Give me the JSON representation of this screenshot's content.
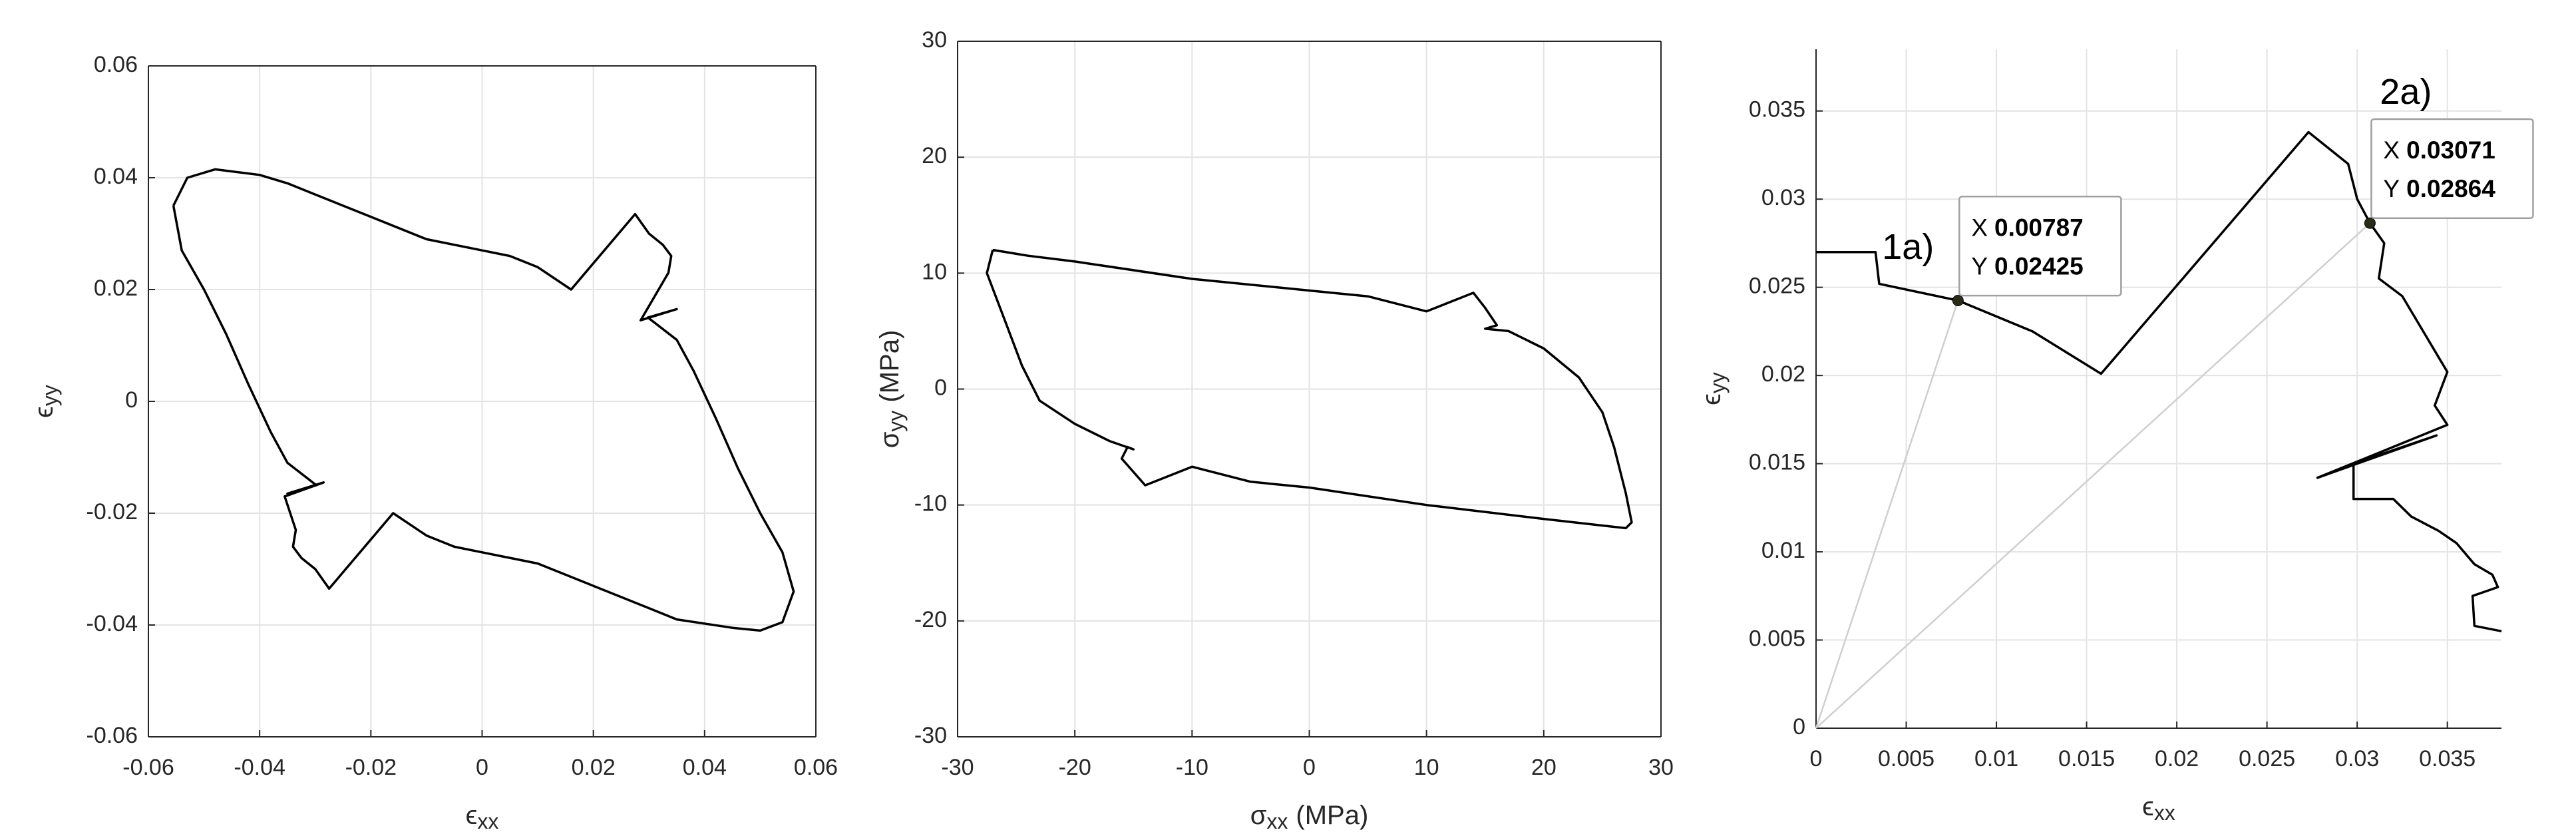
{
  "chart_data": [
    {
      "type": "line",
      "x": [
        -0.0555,
        -0.053,
        -0.048,
        -0.04,
        -0.035,
        -0.03,
        -0.02,
        -0.01,
        0,
        0.005,
        0.01,
        0.016,
        0.0275,
        0.03,
        0.0325,
        0.034,
        0.0335,
        0.0285,
        0.035,
        0.0298,
        0.035,
        0.038,
        0.042,
        0.046,
        0.05,
        0.054,
        0.056,
        0.054,
        0.05,
        0.045,
        0.035,
        0.03,
        0.02,
        0.01,
        0,
        -0.005,
        -0.01,
        -0.016,
        -0.0275,
        -0.03,
        -0.0325,
        -0.034,
        -0.0335,
        -0.0355,
        -0.0285,
        -0.035,
        -0.0298,
        -0.035,
        -0.038,
        -0.042,
        -0.046,
        -0.05,
        -0.054,
        -0.0555
      ],
      "series": [
        {
          "color": "#000000",
          "values": [
            0.035,
            0.04,
            0.0415,
            0.0405,
            0.039,
            0.037,
            0.033,
            0.029,
            0.027,
            0.026,
            0.024,
            0.02,
            0.0335,
            0.03,
            0.028,
            0.026,
            0.023,
            0.0145,
            0.0165,
            0.015,
            0.011,
            0.0055,
            -0.003,
            -0.012,
            -0.02,
            -0.027,
            -0.034,
            -0.0395,
            -0.041,
            -0.0405,
            -0.039,
            -0.037,
            -0.033,
            -0.029,
            -0.027,
            -0.026,
            -0.024,
            -0.02,
            -0.0335,
            -0.03,
            -0.028,
            -0.026,
            -0.023,
            -0.017,
            -0.0145,
            -0.0165,
            -0.015,
            -0.011,
            -0.0055,
            0.003,
            0.012,
            0.02,
            0.027,
            0.035
          ]
        }
      ],
      "xlabel": {
        "symbol": "ϵ",
        "subscript": "xx"
      },
      "ylabel": {
        "symbol": "ϵ",
        "subscript": "yy"
      },
      "xlim": [
        -0.06,
        0.06
      ],
      "xticks": [
        -0.06,
        -0.04,
        -0.02,
        0,
        0.02,
        0.04,
        0.06
      ],
      "ylim": [
        -0.06,
        0.06
      ],
      "yticks": [
        -0.06,
        -0.04,
        -0.02,
        0,
        0.02,
        0.04,
        0.06
      ],
      "grid": true,
      "box": true
    },
    {
      "type": "line",
      "x": [
        -27,
        -24,
        -20,
        -10,
        0,
        5,
        10,
        14,
        15,
        16,
        15,
        17,
        20,
        23,
        25,
        26,
        27,
        27.5,
        27,
        20,
        10,
        0,
        -5,
        -10,
        -14,
        -16,
        -15.5,
        -15,
        -17,
        -20,
        -23,
        -24.5,
        -26,
        -27.5,
        -27
      ],
      "series": [
        {
          "color": "#000000",
          "values": [
            12,
            11.5,
            11,
            9.5,
            8.5,
            8,
            6.7,
            8.3,
            7,
            5.5,
            5.2,
            5,
            3.5,
            1,
            -2,
            -5,
            -9,
            -11.5,
            -12,
            -11.2,
            -10,
            -8.5,
            -8,
            -6.7,
            -8.3,
            -6,
            -5,
            -5.2,
            -4.5,
            -3,
            -1,
            2,
            6,
            10,
            12
          ]
        }
      ],
      "xlabel": {
        "symbol": "σ",
        "subscript": "xx",
        "unit": "(MPa)"
      },
      "ylabel": {
        "symbol": "σ",
        "subscript": "yy",
        "unit": "(MPa)"
      },
      "xlim": [
        -30,
        30
      ],
      "xticks": [
        -30,
        -20,
        -10,
        0,
        10,
        20,
        30
      ],
      "ylim": [
        -30,
        30
      ],
      "yticks": [
        -30,
        -20,
        -10,
        0,
        10,
        20,
        30
      ],
      "grid": true,
      "box": true
    },
    {
      "type": "line",
      "x": [
        0,
        0.0033,
        0.0035,
        0.00787,
        0.012,
        0.0158,
        0.0273,
        0.0295,
        0.03,
        0.03071,
        0.0315,
        0.0312,
        0.0325,
        0.035,
        0.0343,
        0.035,
        0.0278,
        0.0344,
        0.0298,
        0.0298,
        0.032,
        0.033,
        0.0345,
        0.0355,
        0.0365,
        0.0375,
        0.0378,
        0.0364,
        0.0365,
        0.038
      ],
      "series": [
        {
          "color": "#000000",
          "values": [
            0.027,
            0.027,
            0.0252,
            0.02425,
            0.0225,
            0.0201,
            0.0338,
            0.032,
            0.03,
            0.02864,
            0.0275,
            0.0255,
            0.0245,
            0.0202,
            0.0183,
            0.0172,
            0.0142,
            0.0166,
            0.015,
            0.013,
            0.013,
            0.012,
            0.0112,
            0.0105,
            0.0093,
            0.0087,
            0.008,
            0.0075,
            0.0058,
            0.0055
          ]
        }
      ],
      "xlabel": {
        "symbol": "ϵ",
        "subscript": "xx"
      },
      "ylabel": {
        "symbol": "ϵ",
        "subscript": "yy"
      },
      "xlim": [
        0,
        0.038
      ],
      "xticks": [
        0,
        0.005,
        0.01,
        0.015,
        0.02,
        0.025,
        0.03,
        0.035
      ],
      "ylim": [
        0,
        0.0385
      ],
      "yticks": [
        0,
        0.005,
        0.01,
        0.015,
        0.02,
        0.025,
        0.03,
        0.035
      ],
      "grid": true,
      "box": false,
      "annotations": [
        {
          "label": "1a)",
          "x": 0.00787,
          "y": 0.02425,
          "x_prefix": "X",
          "y_prefix": "Y"
        },
        {
          "label": "2a)",
          "x": 0.03071,
          "y": 0.02864,
          "x_prefix": "X",
          "y_prefix": "Y"
        }
      ]
    }
  ]
}
